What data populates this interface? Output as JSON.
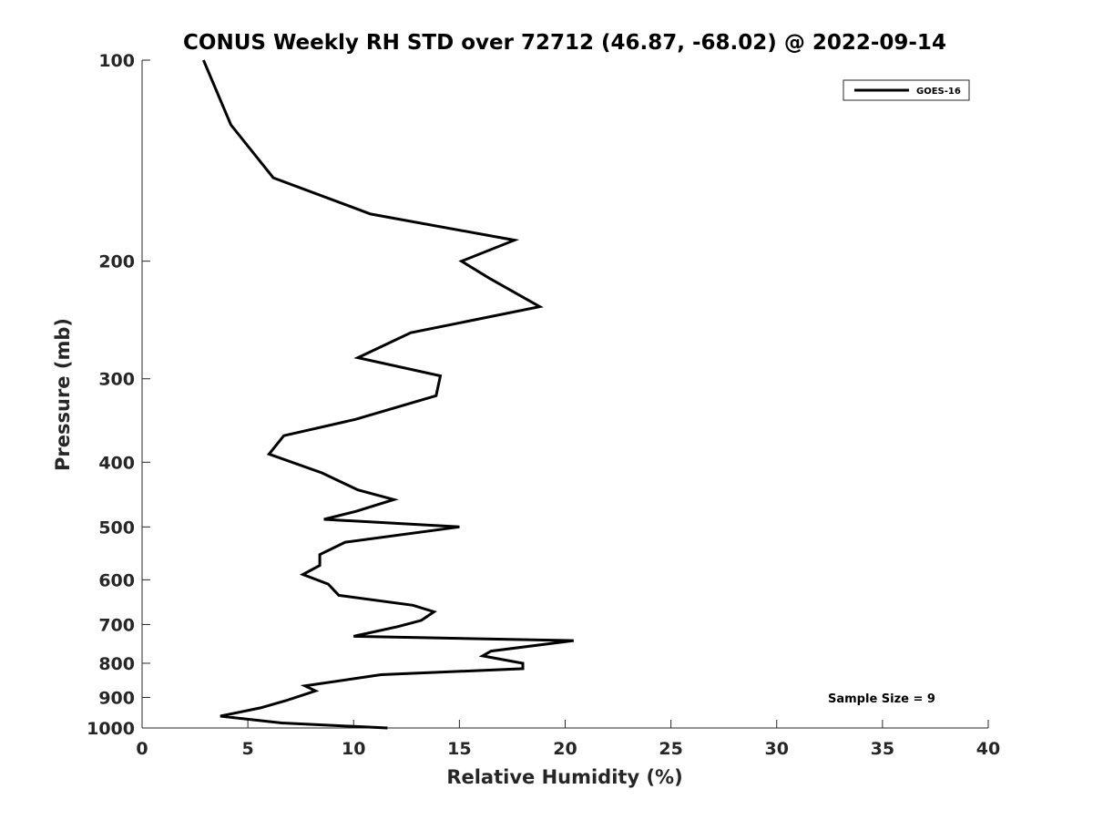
{
  "chart_data": {
    "type": "line",
    "title": "CONUS Weekly RH STD over 72712 (46.87, -68.02) @ 2022-09-14",
    "xlabel": "Relative Humidity (%)",
    "ylabel": "Pressure (mb)",
    "xlim": [
      0,
      40
    ],
    "ylim": [
      100,
      1000
    ],
    "y_scale": "log",
    "y_reversed": true,
    "grid": false,
    "legend_position": "top-right",
    "x_ticks": [
      0,
      5,
      10,
      15,
      20,
      25,
      30,
      35,
      40
    ],
    "y_ticks": [
      100,
      200,
      300,
      400,
      500,
      600,
      700,
      800,
      900,
      1000
    ],
    "series": [
      {
        "name": "GOES-16",
        "color": "#000000",
        "points": [
          [
            2.9,
            100
          ],
          [
            4.2,
            125
          ],
          [
            6.2,
            150
          ],
          [
            10.8,
            170
          ],
          [
            17.6,
            186
          ],
          [
            15.1,
            200
          ],
          [
            16.4,
            212
          ],
          [
            18.8,
            234
          ],
          [
            12.7,
            256
          ],
          [
            10.2,
            279
          ],
          [
            14.1,
            297
          ],
          [
            13.9,
            318
          ],
          [
            10.1,
            345
          ],
          [
            6.7,
            365
          ],
          [
            6.0,
            389
          ],
          [
            8.5,
            415
          ],
          [
            10.2,
            440
          ],
          [
            11.9,
            455
          ],
          [
            10.1,
            474
          ],
          [
            8.6,
            487
          ],
          [
            15.0,
            500
          ],
          [
            9.6,
            527
          ],
          [
            8.4,
            550
          ],
          [
            8.4,
            571
          ],
          [
            7.6,
            589
          ],
          [
            8.8,
            609
          ],
          [
            9.3,
            633
          ],
          [
            12.8,
            655
          ],
          [
            13.8,
            670
          ],
          [
            13.2,
            690
          ],
          [
            12.1,
            705
          ],
          [
            10.0,
            729
          ],
          [
            20.4,
            740
          ],
          [
            16.5,
            767
          ],
          [
            16.1,
            780
          ],
          [
            18.0,
            800
          ],
          [
            18.0,
            815
          ],
          [
            11.3,
            832
          ],
          [
            7.7,
            865
          ],
          [
            8.2,
            880
          ],
          [
            6.8,
            910
          ],
          [
            5.6,
            933
          ],
          [
            3.7,
            960
          ],
          [
            6.6,
            983
          ],
          [
            11.6,
            1000
          ]
        ]
      }
    ],
    "annotations": [
      "Sample Size = 9"
    ]
  }
}
